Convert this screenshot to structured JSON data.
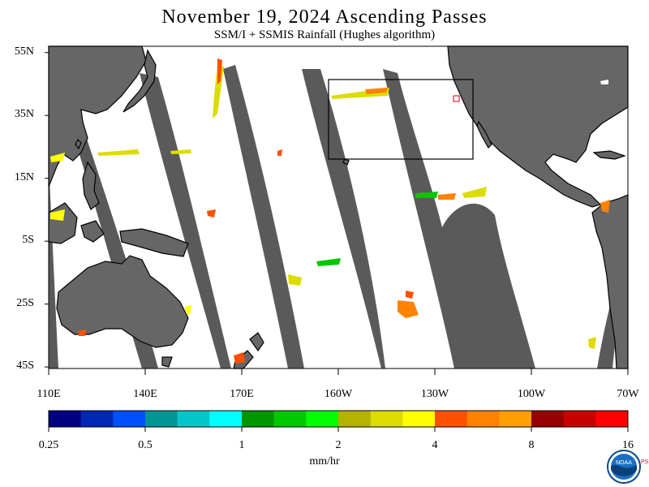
{
  "header": {
    "title": "November 19, 2024  Ascending Passes",
    "subtitle": "SSM/I + SSMIS Rainfall (Hughes algorithm)"
  },
  "map": {
    "lat_labels": [
      "55N",
      "35N",
      "15N",
      "5S",
      "25S",
      "45S"
    ],
    "lon_labels": [
      "110E",
      "140E",
      "170E",
      "160W",
      "130W",
      "100W",
      "70W"
    ],
    "lat_values": [
      55,
      35,
      15,
      -5,
      -25,
      -45
    ],
    "lon_values": [
      110,
      140,
      170,
      200,
      230,
      260,
      290
    ],
    "land_color": "#666666",
    "ocean_color": "#ffffff",
    "coastline_color": "#000000"
  },
  "colorbar": {
    "colors": [
      "#000080",
      "#0028b4",
      "#0050ff",
      "#009696",
      "#00c8c8",
      "#00ffff",
      "#009600",
      "#00c800",
      "#00ff00",
      "#b4b400",
      "#dcdc00",
      "#ffff00",
      "#ff5000",
      "#ff8200",
      "#ffa000",
      "#960000",
      "#c80000",
      "#ff0000"
    ],
    "tick_labels": [
      "0.25",
      "0.5",
      "1",
      "2",
      "4",
      "8",
      "16"
    ],
    "units": "mm/hr"
  },
  "logo": {
    "text": "NOAA",
    "side_text": "PSL"
  }
}
